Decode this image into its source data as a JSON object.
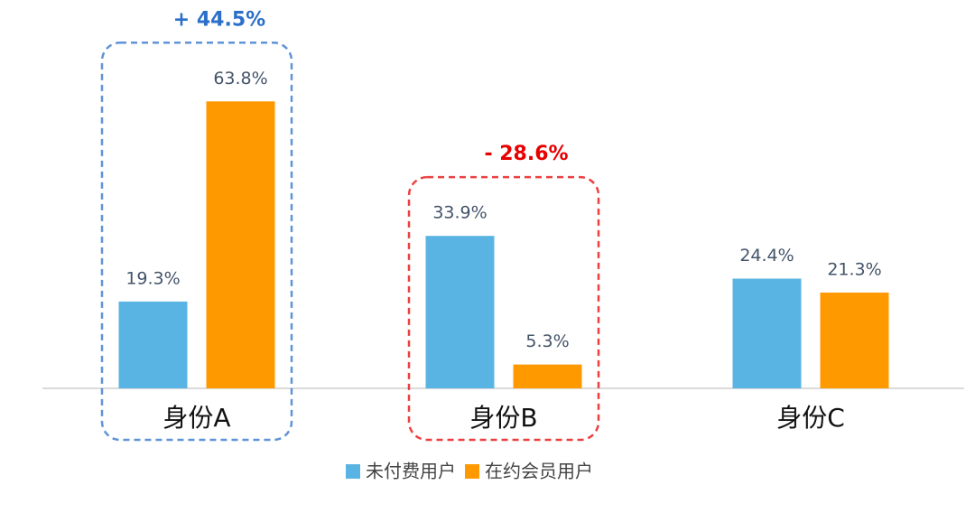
{
  "chart_data": {
    "type": "bar",
    "categories": [
      "身份A",
      "身份B",
      "身份C"
    ],
    "series": [
      {
        "name": "未付费用户",
        "color": "#5ab4e3",
        "values": [
          19.3,
          33.9,
          24.4
        ],
        "value_labels": [
          "19.3%",
          "33.9%",
          "24.4%"
        ]
      },
      {
        "name": "在约会员用户",
        "color": "#ff9900",
        "values": [
          63.8,
          5.3,
          21.3
        ],
        "value_labels": [
          "63.8%",
          "5.3%",
          "21.3%"
        ]
      }
    ],
    "annotations": [
      {
        "text": "+ 44.5%",
        "category": "身份A",
        "color": "#2a6fc9"
      },
      {
        "text": "- 28.6%",
        "category": "身份B",
        "color": "#e60000"
      }
    ],
    "legend": "bottom"
  }
}
